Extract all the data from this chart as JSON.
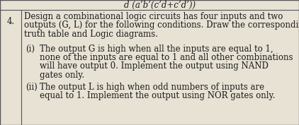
{
  "bg_color": "#d8cfc0",
  "cell_bg": "#e8e2d5",
  "header_text": "d (a’b’(c’d+c’d’))",
  "number": "4.",
  "line1": "Design a combinational logic circuits has four inputs and two",
  "line2": "outputs (G, L) for the following conditions. Draw the corresponding",
  "line3": "truth table and Logic diagrams.",
  "i_label": "(i)",
  "i_line1": "The output G is high when all the inputs are equal to 1,",
  "i_line2": "none of the inputs are equal to 1 and all other combinations",
  "i_line3": "will have output 0. Implement the output using NAND",
  "i_line4": "gates only.",
  "ii_label": "(ii)",
  "ii_line1": "The output L is high when odd numbers of inputs are",
  "ii_line2": "equal to 1. Implement the output using NOR gates only.",
  "font_size": 8.5,
  "header_font_size": 8.5,
  "text_color": "#1c1c1c",
  "border_color": "#555555",
  "fig_width": 4.22,
  "fig_height": 1.77,
  "dpi": 100
}
